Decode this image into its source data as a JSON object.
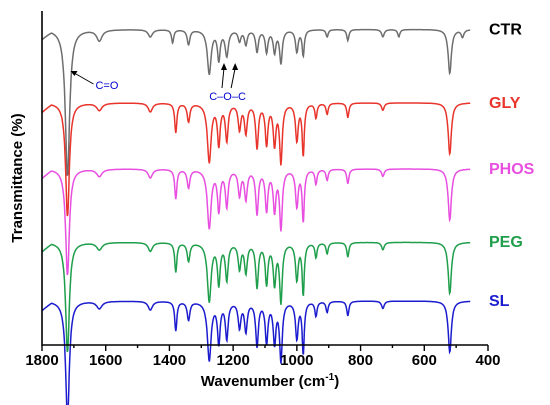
{
  "chart_data": {
    "type": "line",
    "xlabel": "Wavenumber (cm",
    "xlabel_sup": "-1",
    "xlabel_close": ")",
    "ylabel": "Transmittance (%)",
    "xlim": [
      1800,
      400
    ],
    "xticks": [
      1800,
      1600,
      1400,
      1200,
      1000,
      800,
      600,
      400
    ],
    "x_reversed": true,
    "y_ticks_shown": false,
    "grid": false,
    "series": [
      {
        "name": "CTR",
        "color": "#6e6e6e",
        "offset": 4.1,
        "peaks": [
          [
            1720,
            2.0,
            8
          ],
          [
            1620,
            0.15,
            10
          ],
          [
            1460,
            0.1,
            8
          ],
          [
            1390,
            0.18,
            4
          ],
          [
            1340,
            0.2,
            5
          ],
          [
            1275,
            0.6,
            7
          ],
          [
            1245,
            0.4,
            5
          ],
          [
            1220,
            0.35,
            6
          ],
          [
            1180,
            0.15,
            5
          ],
          [
            1160,
            0.2,
            5
          ],
          [
            1125,
            0.3,
            5
          ],
          [
            1095,
            0.3,
            5
          ],
          [
            1070,
            0.3,
            5
          ],
          [
            1050,
            0.45,
            5
          ],
          [
            1000,
            0.3,
            5
          ],
          [
            980,
            0.35,
            4
          ],
          [
            905,
            0.1,
            4
          ],
          [
            840,
            0.15,
            4
          ],
          [
            730,
            0.1,
            5
          ],
          [
            680,
            0.1,
            4
          ],
          [
            520,
            0.6,
            6
          ],
          [
            480,
            0.1,
            5
          ]
        ]
      },
      {
        "name": "GLY",
        "color": "#e8342b",
        "offset": 3.1,
        "peaks": [
          [
            1720,
            1.55,
            7
          ],
          [
            1620,
            0.1,
            10
          ],
          [
            1460,
            0.12,
            8
          ],
          [
            1380,
            0.4,
            4
          ],
          [
            1340,
            0.25,
            5
          ],
          [
            1275,
            0.8,
            7
          ],
          [
            1245,
            0.55,
            5
          ],
          [
            1220,
            0.5,
            5
          ],
          [
            1180,
            0.35,
            5
          ],
          [
            1160,
            0.4,
            5
          ],
          [
            1125,
            0.6,
            5
          ],
          [
            1095,
            0.55,
            5
          ],
          [
            1070,
            0.55,
            5
          ],
          [
            1050,
            0.8,
            5
          ],
          [
            1000,
            0.5,
            5
          ],
          [
            980,
            0.7,
            4
          ],
          [
            940,
            0.2,
            4
          ],
          [
            905,
            0.15,
            4
          ],
          [
            840,
            0.2,
            4
          ],
          [
            730,
            0.1,
            5
          ],
          [
            520,
            0.7,
            6
          ]
        ]
      },
      {
        "name": "PHOS",
        "color": "#e84fe0",
        "offset": 2.2,
        "peaks": [
          [
            1720,
            1.45,
            7
          ],
          [
            1620,
            0.1,
            10
          ],
          [
            1460,
            0.12,
            8
          ],
          [
            1380,
            0.4,
            4
          ],
          [
            1340,
            0.25,
            5
          ],
          [
            1275,
            0.8,
            7
          ],
          [
            1245,
            0.55,
            5
          ],
          [
            1220,
            0.5,
            5
          ],
          [
            1180,
            0.35,
            5
          ],
          [
            1160,
            0.4,
            5
          ],
          [
            1125,
            0.6,
            5
          ],
          [
            1095,
            0.55,
            5
          ],
          [
            1070,
            0.55,
            5
          ],
          [
            1050,
            0.8,
            5
          ],
          [
            1000,
            0.5,
            5
          ],
          [
            980,
            0.7,
            4
          ],
          [
            940,
            0.2,
            4
          ],
          [
            905,
            0.15,
            4
          ],
          [
            840,
            0.2,
            4
          ],
          [
            730,
            0.1,
            5
          ],
          [
            520,
            0.7,
            6
          ]
        ]
      },
      {
        "name": "PEG",
        "color": "#1f9e4b",
        "offset": 1.2,
        "peaks": [
          [
            1720,
            1.5,
            7
          ],
          [
            1620,
            0.1,
            10
          ],
          [
            1460,
            0.12,
            8
          ],
          [
            1380,
            0.4,
            4
          ],
          [
            1340,
            0.25,
            5
          ],
          [
            1275,
            0.8,
            7
          ],
          [
            1245,
            0.55,
            5
          ],
          [
            1220,
            0.5,
            5
          ],
          [
            1180,
            0.35,
            5
          ],
          [
            1160,
            0.4,
            5
          ],
          [
            1125,
            0.6,
            5
          ],
          [
            1095,
            0.55,
            5
          ],
          [
            1070,
            0.55,
            5
          ],
          [
            1050,
            0.8,
            5
          ],
          [
            1000,
            0.5,
            5
          ],
          [
            980,
            0.7,
            4
          ],
          [
            940,
            0.2,
            4
          ],
          [
            905,
            0.15,
            4
          ],
          [
            840,
            0.2,
            4
          ],
          [
            730,
            0.1,
            5
          ],
          [
            520,
            0.7,
            6
          ]
        ]
      },
      {
        "name": "SL",
        "color": "#1c1ccf",
        "offset": 0.4,
        "peaks": [
          [
            1720,
            1.6,
            7
          ],
          [
            1620,
            0.1,
            10
          ],
          [
            1460,
            0.12,
            8
          ],
          [
            1380,
            0.4,
            4
          ],
          [
            1340,
            0.25,
            5
          ],
          [
            1275,
            0.8,
            7
          ],
          [
            1245,
            0.55,
            5
          ],
          [
            1220,
            0.5,
            5
          ],
          [
            1180,
            0.35,
            5
          ],
          [
            1160,
            0.4,
            5
          ],
          [
            1125,
            0.6,
            5
          ],
          [
            1095,
            0.55,
            5
          ],
          [
            1070,
            0.55,
            5
          ],
          [
            1050,
            0.8,
            5
          ],
          [
            1000,
            0.5,
            5
          ],
          [
            980,
            0.7,
            4
          ],
          [
            940,
            0.2,
            4
          ],
          [
            905,
            0.15,
            4
          ],
          [
            840,
            0.2,
            4
          ],
          [
            730,
            0.1,
            5
          ],
          [
            520,
            0.7,
            6
          ]
        ]
      }
    ],
    "annotations": [
      {
        "text": "C=O",
        "x": 1720
      },
      {
        "text": "C–O–C",
        "x": [
          1235,
          1200
        ]
      }
    ]
  }
}
